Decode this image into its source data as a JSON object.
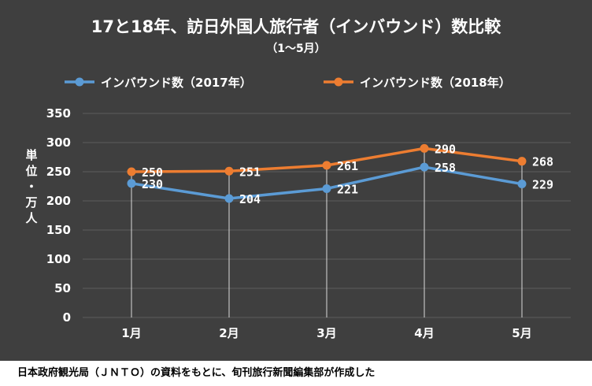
{
  "chart_data": {
    "type": "line",
    "title": "17と18年、訪日外国人旅行者（インバウンド）数比較",
    "subtitle": "（1～5月）",
    "ylabel": "単位・万人",
    "categories": [
      "1月",
      "2月",
      "3月",
      "4月",
      "5月"
    ],
    "ylim": [
      0,
      350
    ],
    "yticks": [
      0,
      50,
      100,
      150,
      200,
      250,
      300,
      350
    ],
    "grid": true,
    "legend_position": "top",
    "series": [
      {
        "name": "インバウンド数（2017年）",
        "color": "#5b9bd5",
        "values": [
          230,
          204,
          221,
          258,
          229
        ]
      },
      {
        "name": "インバウンド数（2018年）",
        "color": "#ed7d31",
        "values": [
          250,
          251,
          261,
          290,
          268
        ]
      }
    ]
  },
  "colors": {
    "background": "#3f3f3f",
    "gridline": "#5e5e5e",
    "text": "#ffffff",
    "drop_line": "#d9d9d9"
  },
  "source_note": "日本政府観光局（ＪＮＴＯ）の資料をもとに、旬刊旅行新聞編集部が作成した"
}
